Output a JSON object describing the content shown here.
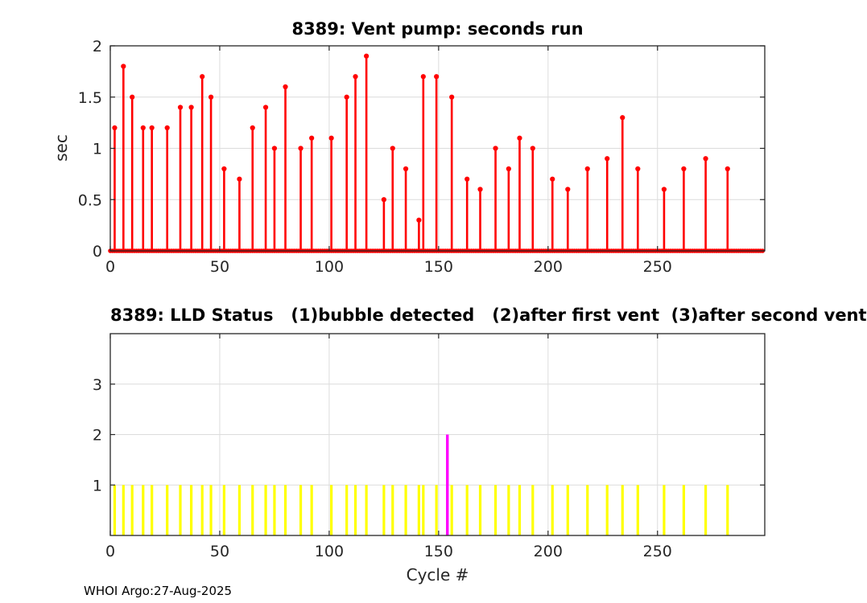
{
  "figure": {
    "footer_credit": "WHOI Argo:27-Aug-2025"
  },
  "colors": {
    "vent_stem": "#ff0000",
    "status_bubble": "#ffff00",
    "status_after_first_vent": "#ff00ff",
    "grid": "#dcdcdc",
    "axis": "#262626",
    "tick_label": "#262626"
  },
  "chart_data": [
    {
      "type": "stem",
      "title": "8389: Vent pump: seconds run",
      "xlabel": "",
      "ylabel": "sec",
      "xlim": [
        0,
        299
      ],
      "ylim": [
        0,
        2
      ],
      "xticks": [
        0,
        50,
        100,
        150,
        200,
        250
      ],
      "yticks": [
        0,
        0.5,
        1,
        1.5,
        2
      ],
      "grid": true,
      "legend": "none",
      "series": [
        {
          "name": "vent pump seconds run",
          "color": "#ff0000",
          "marker": "filled-circle",
          "zero_markers_every_cycle": true,
          "zero_marker_range": [
            0,
            298
          ],
          "points": [
            [
              2,
              1.2
            ],
            [
              6,
              1.8
            ],
            [
              10,
              1.5
            ],
            [
              15,
              1.2
            ],
            [
              19,
              1.2
            ],
            [
              26,
              1.2
            ],
            [
              32,
              1.4
            ],
            [
              37,
              1.4
            ],
            [
              42,
              1.7
            ],
            [
              46,
              1.5
            ],
            [
              52,
              0.8
            ],
            [
              59,
              0.7
            ],
            [
              65,
              1.2
            ],
            [
              71,
              1.4
            ],
            [
              75,
              1.0
            ],
            [
              80,
              1.6
            ],
            [
              87,
              1.0
            ],
            [
              92,
              1.1
            ],
            [
              101,
              1.1
            ],
            [
              108,
              1.5
            ],
            [
              112,
              1.7
            ],
            [
              117,
              1.9
            ],
            [
              125,
              0.5
            ],
            [
              129,
              1.0
            ],
            [
              135,
              0.8
            ],
            [
              141,
              0.3
            ],
            [
              143,
              1.7
            ],
            [
              149,
              1.7
            ],
            [
              156,
              1.5
            ],
            [
              163,
              0.7
            ],
            [
              169,
              0.6
            ],
            [
              176,
              1.0
            ],
            [
              182,
              0.8
            ],
            [
              187,
              1.1
            ],
            [
              193,
              1.0
            ],
            [
              202,
              0.7
            ],
            [
              209,
              0.6
            ],
            [
              218,
              0.8
            ],
            [
              227,
              0.9
            ],
            [
              234,
              1.3
            ],
            [
              241,
              0.8
            ],
            [
              253,
              0.6
            ],
            [
              262,
              0.8
            ],
            [
              272,
              0.9
            ],
            [
              282,
              0.8
            ]
          ]
        }
      ]
    },
    {
      "type": "stem",
      "title": "8389: LLD Status   (1)bubble detected   (2)after first vent  (3)after second vent",
      "xlabel": "Cycle #",
      "ylabel": "",
      "xlim": [
        0,
        299
      ],
      "ylim": [
        0,
        4
      ],
      "xticks": [
        0,
        50,
        100,
        150,
        200,
        250
      ],
      "yticks": [
        1,
        2,
        3
      ],
      "grid": true,
      "legend": "none",
      "series": [
        {
          "name": "status 1: bubble detected",
          "color": "#ffff00",
          "marker": "none",
          "points": [
            [
              2,
              1
            ],
            [
              6,
              1
            ],
            [
              10,
              1
            ],
            [
              15,
              1
            ],
            [
              19,
              1
            ],
            [
              26,
              1
            ],
            [
              32,
              1
            ],
            [
              37,
              1
            ],
            [
              42,
              1
            ],
            [
              46,
              1
            ],
            [
              52,
              1
            ],
            [
              59,
              1
            ],
            [
              65,
              1
            ],
            [
              71,
              1
            ],
            [
              75,
              1
            ],
            [
              80,
              1
            ],
            [
              87,
              1
            ],
            [
              92,
              1
            ],
            [
              101,
              1
            ],
            [
              108,
              1
            ],
            [
              112,
              1
            ],
            [
              117,
              1
            ],
            [
              125,
              1
            ],
            [
              129,
              1
            ],
            [
              135,
              1
            ],
            [
              141,
              1
            ],
            [
              143,
              1
            ],
            [
              149,
              1
            ],
            [
              156,
              1
            ],
            [
              163,
              1
            ],
            [
              169,
              1
            ],
            [
              176,
              1
            ],
            [
              182,
              1
            ],
            [
              187,
              1
            ],
            [
              193,
              1
            ],
            [
              202,
              1
            ],
            [
              209,
              1
            ],
            [
              218,
              1
            ],
            [
              227,
              1
            ],
            [
              234,
              1
            ],
            [
              241,
              1
            ],
            [
              253,
              1
            ],
            [
              262,
              1
            ],
            [
              272,
              1
            ],
            [
              282,
              1
            ]
          ]
        },
        {
          "name": "status 2: after first vent",
          "color": "#ff00ff",
          "marker": "none",
          "points": [
            [
              154,
              2
            ]
          ]
        }
      ]
    }
  ]
}
